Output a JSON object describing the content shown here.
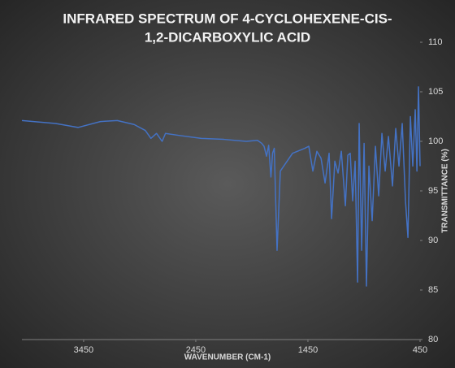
{
  "chart_data": {
    "type": "line",
    "title": [
      "INFRARED SPECTRUM OF 4-CYCLOHEXENE-CIS-",
      "1,2-DICARBOXYLIC ACID"
    ],
    "xlabel": "WAVENUMBER (CM-1)",
    "ylabel": "TRANSMITTANCE (%)",
    "x": [
      4000,
      3700,
      3500,
      3300,
      3150,
      3000,
      2900,
      2850,
      2800,
      2750,
      2720,
      2600,
      2400,
      2200,
      2000,
      1900,
      1862,
      1841,
      1819,
      1800,
      1780,
      1765,
      1750,
      1725,
      1696,
      1587,
      1478,
      1442,
      1406,
      1370,
      1333,
      1297,
      1261,
      1239,
      1210,
      1181,
      1152,
      1116,
      1094,
      1073,
      1051,
      1029,
      1007,
      993,
      971,
      949,
      928,
      906,
      877,
      848,
      819,
      790,
      761,
      732,
      696,
      667,
      638,
      609,
      580,
      558,
      536,
      515,
      493,
      478,
      464,
      450
    ],
    "values": [
      102.1,
      101.8,
      101.4,
      102.0,
      102.1,
      101.7,
      101.1,
      100.3,
      100.8,
      100.0,
      100.8,
      100.6,
      100.3,
      100.2,
      100.0,
      100.1,
      99.8,
      99.5,
      98.5,
      99.6,
      96.4,
      98.8,
      99.3,
      89.0,
      97.0,
      98.8,
      99.3,
      99.5,
      97.0,
      99.0,
      98.3,
      95.8,
      98.8,
      92.2,
      98.0,
      96.8,
      99.0,
      93.5,
      98.6,
      98.8,
      94.0,
      98.0,
      85.8,
      101.8,
      89.0,
      99.8,
      85.4,
      97.5,
      92.0,
      99.5,
      94.5,
      100.8,
      97.0,
      100.5,
      95.5,
      101.3,
      97.5,
      101.8,
      94.0,
      90.3,
      102.5,
      97.5,
      103.2,
      97.0,
      105.5,
      97.5
    ],
    "color": "#4472c4",
    "xlim": [
      4000,
      450
    ],
    "xticks": [
      3450,
      2450,
      1450,
      450
    ],
    "ylim": [
      80,
      110
    ],
    "yticks": [
      80,
      85,
      90,
      95,
      100,
      105,
      110
    ],
    "grid": false
  }
}
